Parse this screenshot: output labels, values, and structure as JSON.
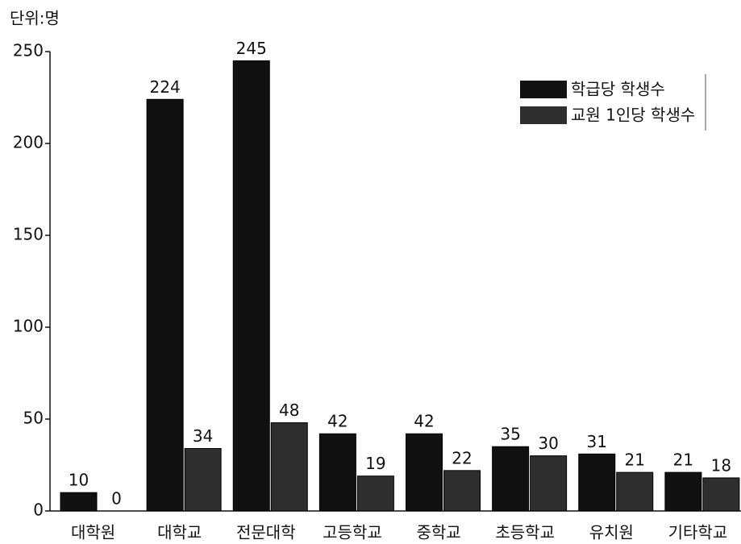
{
  "chart_data": {
    "type": "bar",
    "unit": "단위:명",
    "categories": [
      "대학원",
      "대학교",
      "전문대학",
      "고등학교",
      "중학교",
      "초등학교",
      "유치원",
      "기타학교"
    ],
    "series": [
      {
        "name": "학급당 학생수",
        "color": "#111111",
        "values": [
          10,
          224,
          245,
          42,
          42,
          35,
          31,
          21
        ]
      },
      {
        "name": "교원 1인당 학생수",
        "color": "#2e2e2e",
        "values": [
          0,
          34,
          48,
          19,
          22,
          30,
          21,
          18
        ]
      }
    ],
    "ylim": [
      0,
      250
    ],
    "yticks": [
      0,
      50,
      100,
      150,
      200,
      250
    ],
    "legend": "upper right",
    "show_values": true
  }
}
